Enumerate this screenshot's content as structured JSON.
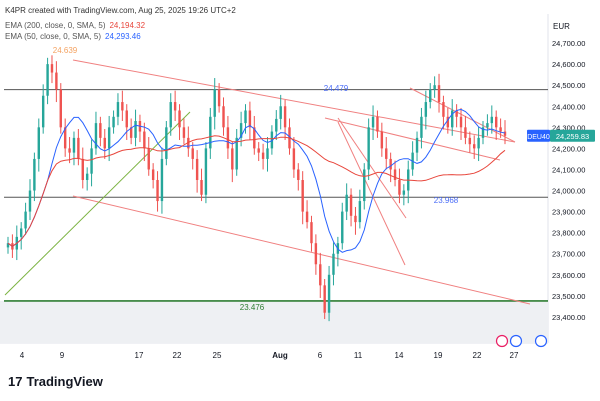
{
  "header": {
    "credit": "K4PR created with TradingView.com, Aug 25, 2025 19:26 UTC+2",
    "ema200_label": "EMA (200, close, 0, SMA, 5)",
    "ema200_value": "24,194.32",
    "ema50_label": "EMA (50, close, 0, SMA, 5)",
    "ema50_value": "24,293.46"
  },
  "footer": {
    "brand": "TradingView",
    "logo_glyph": "17"
  },
  "colors": {
    "candle_up": "#26a69a",
    "candle_down": "#ef5350",
    "ema200": "#e8463c",
    "ema50": "#2962ff",
    "channel": "#f08080",
    "uptrend": "#7cb342",
    "horizontal": "#555555",
    "support": "#2e7d32",
    "price_tag": "#26a69a",
    "symbol_tag": "#2962ff"
  },
  "chart_data": {
    "type": "candlestick",
    "currency": "EUR",
    "symbol_tag": "DEU40",
    "last_price_label": "24,259.83",
    "ylim": [
      23300,
      24800
    ],
    "y_ticks": [
      "24,700.00",
      "24,600.00",
      "24,500.00",
      "24,400.00",
      "24,300.00",
      "24,200.00",
      "24,100.00",
      "24,000.00",
      "23,900.00",
      "23,800.00",
      "23,700.00",
      "23,600.00",
      "23,500.00",
      "23,400.00"
    ],
    "x_ticks": [
      "4",
      "9",
      "17",
      "22",
      "25",
      "Aug",
      "6",
      "11",
      "14",
      "19",
      "22",
      "27"
    ],
    "horizontal_levels": [
      {
        "label": "24.639",
        "value": 24639,
        "kind": "peak_marker"
      },
      {
        "label": "24.479",
        "value": 24479,
        "kind": "resistance"
      },
      {
        "label": "23.968",
        "value": 23968,
        "kind": "level"
      },
      {
        "label": "23.476",
        "value": 23476,
        "kind": "support"
      }
    ],
    "series": [
      {
        "name": "EMA (200, close, 0, SMA, 5)",
        "last": 24194.32
      },
      {
        "name": "EMA (50, close, 0, SMA, 5)",
        "last": 24293.46
      }
    ],
    "closes": [
      23750,
      23720,
      23780,
      23820,
      23900,
      24000,
      24150,
      24300,
      24450,
      24600,
      24560,
      24480,
      24300,
      24200,
      24180,
      24250,
      24150,
      24050,
      24080,
      24200,
      24320,
      24250,
      24200,
      24300,
      24350,
      24420,
      24380,
      24300,
      24250,
      24330,
      24280,
      24200,
      24100,
      24050,
      23950,
      24150,
      24300,
      24420,
      24380,
      24300,
      24250,
      24200,
      24150,
      24050,
      23980,
      24200,
      24350,
      24480,
      24400,
      24300,
      24200,
      24100,
      24250,
      24320,
      24380,
      24300,
      24200,
      24180,
      24150,
      24200,
      24280,
      24340,
      24400,
      24300,
      24200,
      24100,
      24050,
      23900,
      23850,
      23750,
      23650,
      23550,
      23420,
      23600,
      23700,
      23750,
      23900,
      23980,
      23880,
      23850,
      23950,
      24100,
      24300,
      24350,
      24280,
      24200,
      24150,
      24100,
      24050,
      23980,
      24000,
      24100,
      24180,
      24250,
      24350,
      24420,
      24480,
      24500,
      24420,
      24350,
      24300,
      24380,
      24350,
      24300,
      24250,
      24220,
      24200,
      24250,
      24300,
      24320,
      24350,
      24300,
      24280,
      24260
    ]
  }
}
